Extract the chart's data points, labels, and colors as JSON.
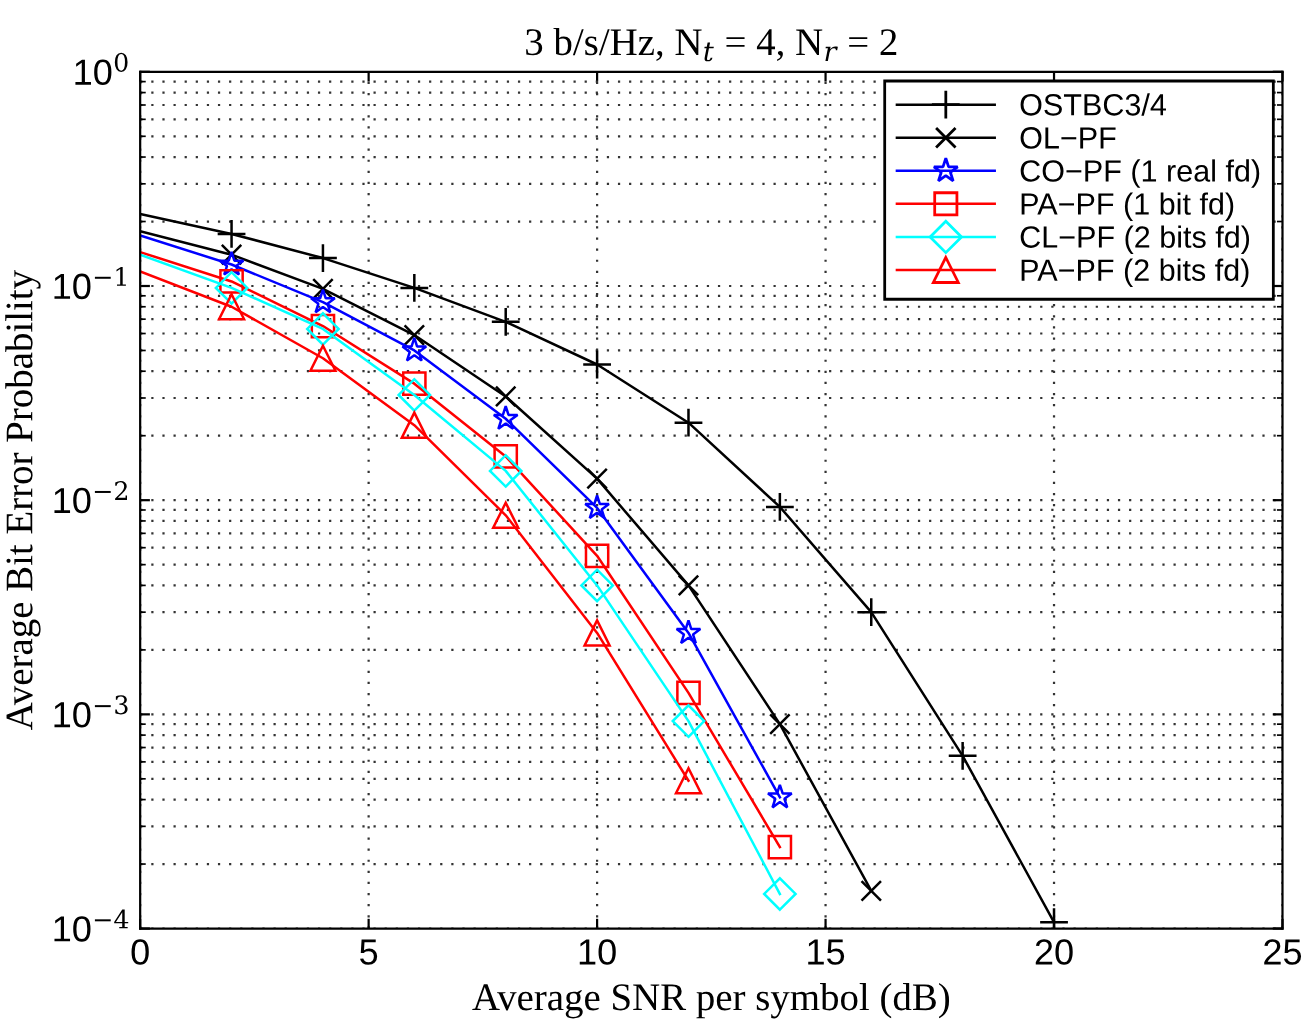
{
  "chart_data": {
    "type": "line",
    "title": "3 b/s/Hz, N$_{t}$ = 4, N$_{r}$ = 2",
    "xlabel": "Average SNR per symbol (dB)",
    "ylabel": "Average Bit Error Probability",
    "log": "y",
    "grid": true,
    "legend": "top right",
    "line_style": "solid",
    "xlim": [
      0,
      25
    ],
    "xticks": [
      0,
      5,
      10,
      15,
      20,
      25
    ],
    "ylim": [
      0.0001,
      1
    ],
    "yticks": [
      {
        "value": 0.0001,
        "label": "10$^{−4}$"
      },
      {
        "value": 0.001,
        "label": "10$^{−3}$"
      },
      {
        "value": 0.01,
        "label": "10$^{−2}$"
      },
      {
        "value": 0.1,
        "label": "10$^{−1}$"
      },
      {
        "value": 1,
        "label": "10$^{0}$"
      }
    ],
    "series": [
      {
        "name": "OSTBC3/4",
        "color": "#000000",
        "marker": "plus",
        "x": [
          0,
          2,
          4,
          6,
          8,
          10,
          12,
          14,
          16,
          18,
          20
        ],
        "values": [
          0.217,
          0.175,
          0.135,
          0.098,
          0.068,
          0.043,
          0.023,
          0.0093,
          0.003,
          0.00064,
          0.000107
        ]
      },
      {
        "name": "OL−PF",
        "color": "#000000",
        "marker": "cross",
        "x": [
          0,
          2,
          4,
          6,
          8,
          10,
          12,
          14,
          16
        ],
        "values": [
          0.18,
          0.14,
          0.097,
          0.059,
          0.0305,
          0.0126,
          0.004,
          0.0009,
          0.00015
        ]
      },
      {
        "name": "CO−PF (1 real fd)",
        "color": "#0000ff",
        "marker": "star",
        "x": [
          0,
          2,
          4,
          6,
          8,
          10,
          12,
          14
        ],
        "values": [
          0.172,
          0.126,
          0.084,
          0.05,
          0.024,
          0.0092,
          0.0024,
          0.00041
        ]
      },
      {
        "name": "PA−PF (1 bit fd)",
        "color": "#ff0000",
        "marker": "square",
        "x": [
          0,
          2,
          4,
          6,
          8,
          10,
          12,
          14
        ],
        "values": [
          0.144,
          0.105,
          0.065,
          0.035,
          0.016,
          0.0055,
          0.00126,
          0.00024
        ]
      },
      {
        "name": "CL−PF (2 bits fd)",
        "color": "#00ffff",
        "marker": "diamond",
        "x": [
          0,
          2,
          4,
          6,
          8,
          10,
          12,
          14
        ],
        "values": [
          0.14,
          0.098,
          0.063,
          0.031,
          0.0137,
          0.004,
          0.00093,
          0.000145
        ]
      },
      {
        "name": "PA−PF (2 bits fd)",
        "color": "#ff0000",
        "marker": "triangle",
        "x": [
          0,
          2,
          4,
          6,
          8,
          10,
          12
        ],
        "values": [
          0.117,
          0.08,
          0.046,
          0.0224,
          0.0085,
          0.0024,
          0.00049
        ]
      }
    ]
  }
}
